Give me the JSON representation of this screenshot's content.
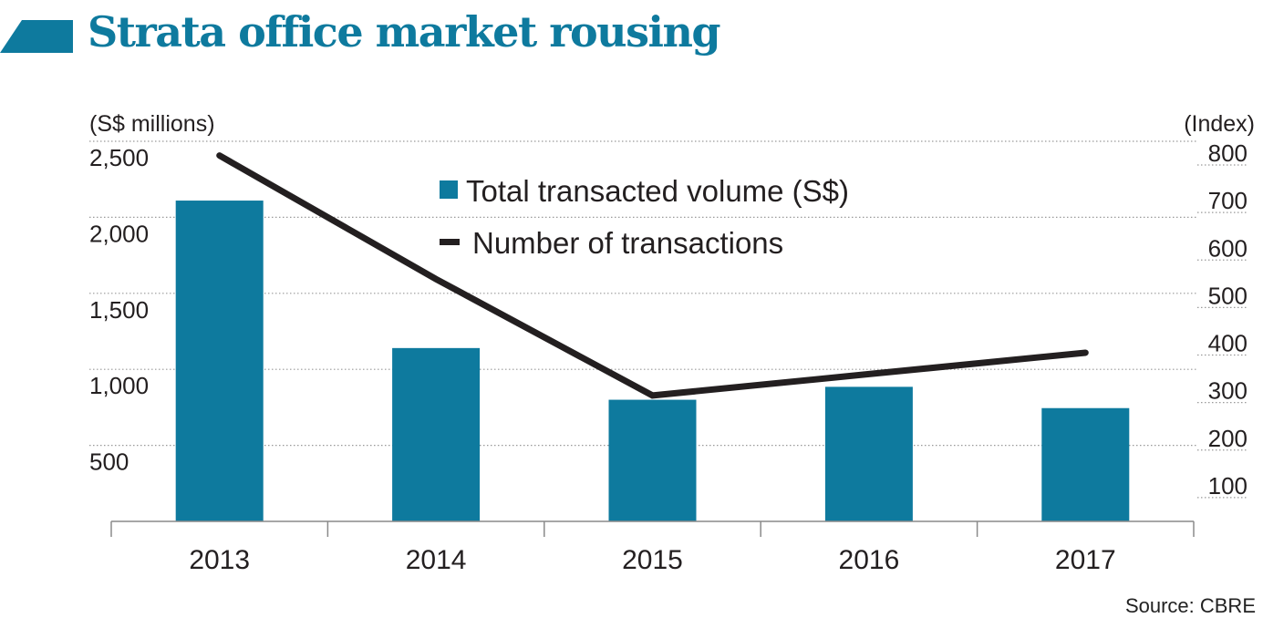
{
  "title": "Strata office market rousing",
  "source": "Source: CBRE",
  "colors": {
    "accent": "#0e7a9e",
    "bar": "#0e7a9e",
    "line": "#231f20"
  },
  "chart_data": {
    "type": "bar",
    "categories": [
      "2013",
      "2014",
      "2015",
      "2016",
      "2017"
    ],
    "series": [
      {
        "name": "Total transacted volume (S$)",
        "kind": "bar",
        "axis": "left",
        "values": [
          2110,
          1140,
          800,
          885,
          745
        ]
      },
      {
        "name": "Number of transactions",
        "kind": "line",
        "axis": "right",
        "values": [
          770,
          510,
          265,
          310,
          355
        ]
      }
    ],
    "ylabel_left": "(S$ millions)",
    "ylabel_right": "(Index)",
    "ylim_left": [
      0,
      2500
    ],
    "ylim_right": [
      0,
      800
    ],
    "yticks_left": [
      500,
      1000,
      1500,
      2000,
      2500
    ],
    "yticks_right": [
      100,
      200,
      300,
      400,
      500,
      600,
      700,
      800
    ],
    "ytick_labels_left": [
      "500",
      "1,000",
      "1,500",
      "2,000",
      "2,500"
    ],
    "ytick_labels_right": [
      "100",
      "200",
      "300",
      "400",
      "500",
      "600",
      "700",
      "800"
    ],
    "grid": true,
    "legend_position": "top-center"
  }
}
